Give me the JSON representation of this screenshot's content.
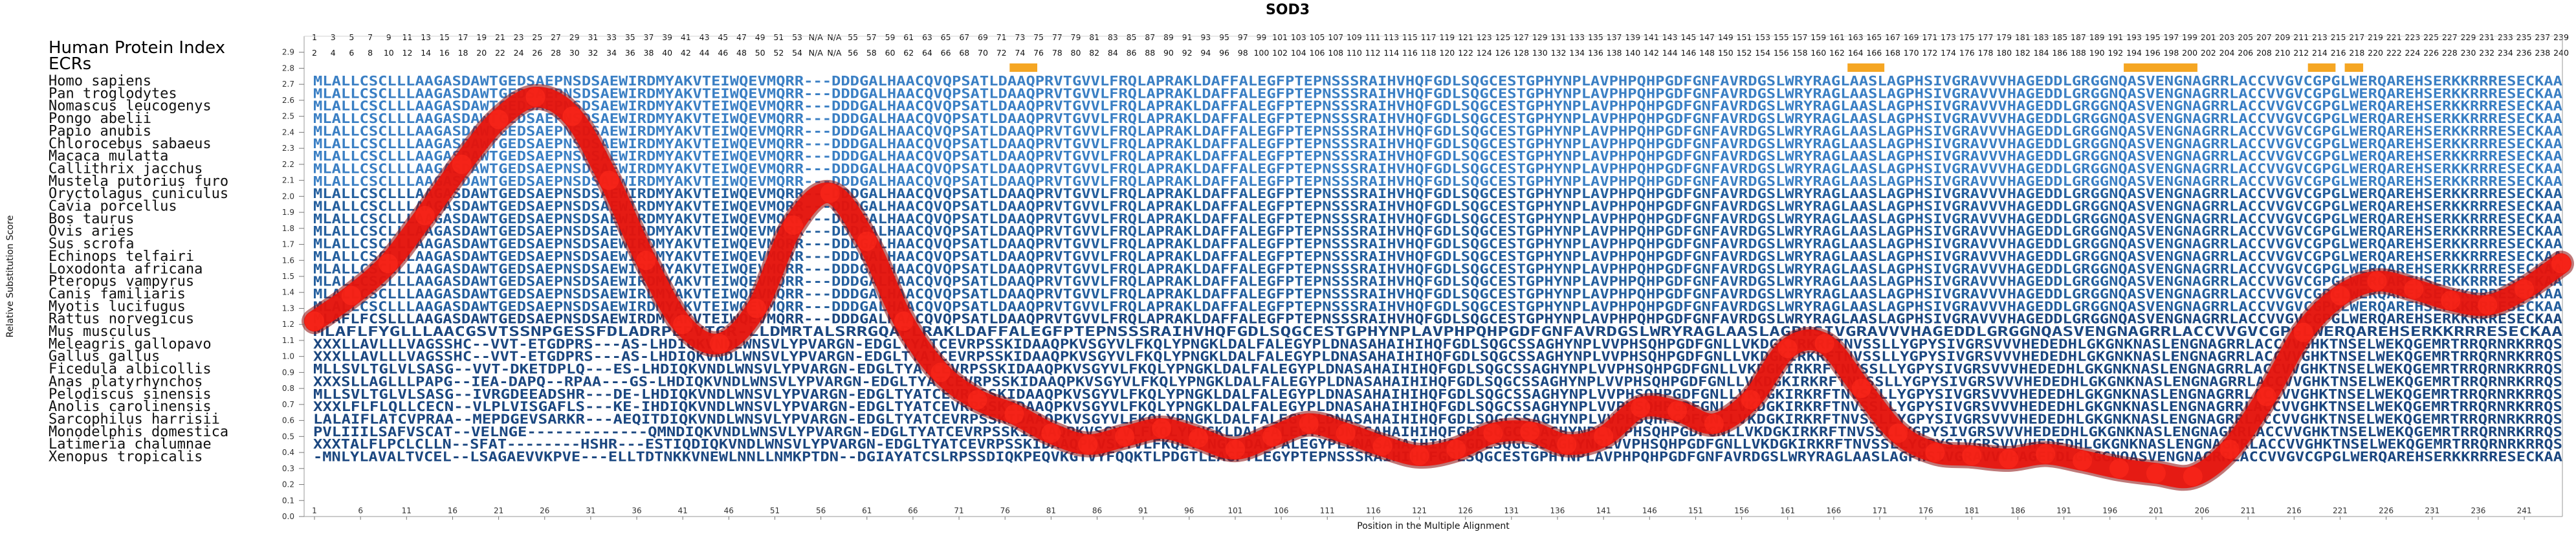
{
  "header": {
    "title": "SOD3",
    "index_label": "Human Protein Index",
    "ecr_label": "ECRs"
  },
  "chart_data": {
    "type": "line",
    "title": "SOD3",
    "xlabel": "Position in the Multiple Alignment",
    "ylabel": "Relative Substitution Score",
    "xlim": [
      1,
      245
    ],
    "ylim": [
      0,
      3.0
    ],
    "y_ticks": [
      0,
      0.1,
      0.2,
      0.3,
      0.4,
      0.5,
      0.6,
      0.7,
      0.8,
      0.9,
      1.0,
      1.1,
      1.2,
      1.3,
      1.4,
      1.5,
      1.6,
      1.7,
      1.8,
      1.9,
      2.0,
      2.1,
      2.2,
      2.3,
      2.4,
      2.5,
      2.6,
      2.7,
      2.8,
      2.9
    ],
    "x_ticks": [
      1,
      6,
      11,
      16,
      21,
      26,
      31,
      36,
      41,
      46,
      51,
      56,
      61,
      66,
      71,
      76,
      81,
      86,
      91,
      96,
      101,
      106,
      111,
      116,
      121,
      126,
      131,
      136,
      141,
      146,
      151,
      156,
      161,
      166,
      171,
      176,
      181,
      186,
      191,
      196,
      201,
      206,
      211,
      216,
      221,
      226,
      231,
      236,
      241
    ],
    "grid": false,
    "legend": "none",
    "series": [
      {
        "color": "#e8140c",
        "x": [
          1,
          5,
          9,
          13,
          17,
          21,
          25,
          29,
          33,
          37,
          41,
          45,
          49,
          53,
          57,
          61,
          65,
          69,
          73,
          77,
          81,
          85,
          89,
          93,
          97,
          101,
          105,
          109,
          113,
          117,
          121,
          125,
          129,
          133,
          137,
          141,
          145,
          149,
          153,
          157,
          161,
          165,
          169,
          173,
          177,
          181,
          185,
          189,
          193,
          197,
          201,
          205,
          209,
          213,
          217,
          221,
          225,
          229,
          233,
          237,
          241,
          245
        ],
        "y": [
          1.22,
          1.38,
          1.58,
          1.88,
          2.2,
          2.48,
          2.62,
          2.5,
          2.1,
          1.6,
          1.2,
          1.08,
          1.3,
          1.82,
          2.02,
          1.72,
          1.22,
          0.9,
          0.73,
          0.64,
          0.52,
          0.45,
          0.5,
          0.55,
          0.49,
          0.42,
          0.5,
          0.58,
          0.52,
          0.44,
          0.38,
          0.42,
          0.52,
          0.53,
          0.45,
          0.5,
          0.68,
          0.66,
          0.58,
          0.73,
          1.05,
          1.08,
          0.8,
          0.52,
          0.4,
          0.38,
          0.36,
          0.39,
          0.35,
          0.3,
          0.27,
          0.25,
          0.42,
          0.75,
          1.15,
          1.38,
          1.47,
          1.42,
          1.35,
          1.32,
          1.42,
          1.58
        ]
      }
    ]
  },
  "ecr_segments": [
    {
      "from": 77,
      "to": 79
    },
    {
      "from": 168,
      "to": 171
    },
    {
      "from": 198,
      "to": 205
    },
    {
      "from": 218,
      "to": 220
    },
    {
      "from": 222,
      "to": 223
    }
  ],
  "human_index_row1": [
    "1",
    "3",
    "5",
    "7",
    "9",
    "11",
    "13",
    "15",
    "17",
    "19",
    "21",
    "23",
    "25",
    "27",
    "29",
    "31",
    "33",
    "35",
    "37",
    "39",
    "41",
    "43",
    "45",
    "47",
    "49",
    "51",
    "53",
    "N/A",
    "N/A",
    "55",
    "57",
    "59",
    "61",
    "63",
    "65",
    "67",
    "69",
    "71",
    "73",
    "75",
    "77",
    "79",
    "81",
    "83",
    "85",
    "87",
    "89",
    "91",
    "93",
    "95",
    "97",
    "99",
    "101",
    "103",
    "105",
    "107",
    "109",
    "111",
    "113",
    "115",
    "117",
    "119",
    "121",
    "123",
    "125",
    "127",
    "129",
    "131",
    "133",
    "135",
    "137",
    "139",
    "141",
    "143",
    "145",
    "147",
    "149",
    "151",
    "153",
    "155",
    "157",
    "159",
    "161",
    "163",
    "165",
    "167",
    "169",
    "171",
    "173",
    "175",
    "177",
    "179",
    "181",
    "183",
    "185",
    "187",
    "189",
    "191",
    "193",
    "195",
    "197",
    "199",
    "201",
    "203",
    "205",
    "207",
    "209",
    "211",
    "213",
    "215",
    "217",
    "219",
    "221",
    "223",
    "225",
    "227",
    "229",
    "231",
    "233",
    "235",
    "237",
    "239"
  ],
  "human_index_row2": [
    "2",
    "4",
    "6",
    "8",
    "10",
    "12",
    "14",
    "16",
    "18",
    "20",
    "22",
    "24",
    "26",
    "28",
    "30",
    "32",
    "34",
    "36",
    "38",
    "40",
    "42",
    "44",
    "46",
    "48",
    "50",
    "52",
    "54",
    "N/A",
    "N/A",
    "56",
    "58",
    "60",
    "62",
    "64",
    "66",
    "68",
    "70",
    "72",
    "74",
    "76",
    "78",
    "80",
    "82",
    "84",
    "86",
    "88",
    "90",
    "92",
    "94",
    "96",
    "98",
    "100",
    "102",
    "104",
    "106",
    "108",
    "110",
    "112",
    "114",
    "116",
    "118",
    "120",
    "122",
    "124",
    "126",
    "128",
    "130",
    "132",
    "134",
    "136",
    "138",
    "140",
    "142",
    "144",
    "146",
    "148",
    "150",
    "152",
    "154",
    "156",
    "158",
    "160",
    "162",
    "164",
    "166",
    "168",
    "170",
    "172",
    "174",
    "176",
    "178",
    "180",
    "182",
    "184",
    "186",
    "188",
    "190",
    "192",
    "194",
    "196",
    "198",
    "200",
    "202",
    "204",
    "206",
    "208",
    "210",
    "212",
    "214",
    "216",
    "218",
    "220",
    "222",
    "224",
    "226",
    "228",
    "230",
    "232",
    "234",
    "236",
    "238",
    "240"
  ],
  "alignment": [
    {
      "species": "Homo sapiens",
      "seq": "MLALLCSCLLLAAGASDAWTGEDSAEPNSDSAEWIRDMYAKVTEIWQEVMQRR---DDDGALHAACQVQPSATLDAAQPRVTGVVLFRQLAPRAKLDAFFALEGFPTEPNSSSRAIHVHQFGDLSQGCESTGPHYNPLAVPHPQHPGDFGNFAVRDGSLWRYRAGLAASLAGPHSIVGRAVVVHAGEDDLGRGGNQASVENGNAGRRLACCVVGVCGPGLWERQAREHSERKKRRRESECKAA"
    },
    {
      "species": "Pan troglodytes",
      "seq": "MLALLCSCLLLAAGASDAWTGEDSAEPNSDSAEWIRDMYAKVTEIWQEVMQRR---DDDGALHAACQVQPSATLDAAQPRVTGVVLFRQLAPRAKLDAFFALEGFPTEPNSSSRAIHVHQFGDLSQGCESTGPHYNPLAVPHPQHPGDFGNFAVRDGSLWRYRAGLAASLAGPHSIVGRAVVVHAGEDDLGRGGNQASVENGNAGRRLACCVVGVCGPGLWERQAREHSERKKRRRESECKAA"
    },
    {
      "species": "Nomascus leucogenys",
      "seq": "MLALLCSCLLLAAGASDAWTGEDSAEPNSDSAEWIRDMYAKVTEIWQEVMQRR---DDDGALHAACQVQPSATLDAAQPRVTGVVLFRQLAPRAKLDAFFALEGFPTEPNSSSRAIHVHQFGDLSQGCESTGPHYNPLAVPHPQHPGDFGNFAVRDGSLWRYRAGLAASLAGPHSIVGRAVVVHAGEDDLGRGGNQASVENGNAGRRLACCVVGVCGPGLWERQAREHSERKKRRRESECKAA"
    },
    {
      "species": "Pongo abelii",
      "seq": "MLALLCSCLLLAAGASDAWTGEDSAEPNSDSAEWIRDMYAKVTEIWQEVMQRR---DDDGALHAACQVQPSATLDAAQPRVTGVVLFRQLAPRAKLDAFFALEGFPTEPNSSSRAIHVHQFGDLSQGCESTGPHYNPLAVPHPQHPGDFGNFAVRDGSLWRYRAGLAASLAGPHSIVGRAVVVHAGEDDLGRGGNQASVENGNAGRRLACCVVGVCGPGLWERQAREHSERKKRRRESECKAA"
    },
    {
      "species": "Papio anubis",
      "seq": "MLALLCSCLLLAAGASDAWTGEDSAEPNSDSAEWIRDMYAKVTEIWQEVMQRR---DDDGALHAACQVQPSATLDAAQPRVTGVVLFRQLAPRAKLDAFFALEGFPTEPNSSSRAIHVHQFGDLSQGCESTGPHYNPLAVPHPQHPGDFGNFAVRDGSLWRYRAGLAASLAGPHSIVGRAVVVHAGEDDLGRGGNQASVENGNAGRRLACCVVGVCGPGLWERQAREHSERKKRRRESECKAA"
    },
    {
      "species": "Chlorocebus sabaeus",
      "seq": "MLALLCSCLLLAAGASDAWTGEDSAEPNSDSAEWIRDMYAKVTEIWQEVMQRR---DDDGALHAACQVQPSATLDAAQPRVTGVVLFRQLAPRAKLDAFFALEGFPTEPNSSSRAIHVHQFGDLSQGCESTGPHYNPLAVPHPQHPGDFGNFAVRDGSLWRYRAGLAASLAGPHSIVGRAVVVHAGEDDLGRGGNQASVENGNAGRRLACCVVGVCGPGLWERQAREHSERKKRRRESECKAA"
    },
    {
      "species": "Macaca mulatta",
      "seq": "MLALLCSCLLLAAGASDAWTGEDSAEPNSDSAEWIRDMYAKVTEIWQEVMQRR---DDDGALHAACQVQPSATLDAAQPRVTGVVLFRQLAPRAKLDAFFALEGFPTEPNSSSRAIHVHQFGDLSQGCESTGPHYNPLAVPHPQHPGDFGNFAVRDGSLWRYRAGLAASLAGPHSIVGRAVVVHAGEDDLGRGGNQASVENGNAGRRLACCVVGVCGPGLWERQAREHSERKKRRRESECKAA"
    },
    {
      "species": "Callithrix jacchus",
      "seq": "MLALLCSCLLLAAGASDAWTGEDSAEPNSDSAEWIRDMYAKVTEIWQEVMQRR---DDDGALHAACQVQPSATLDAAQPRVTGVVLFRQLAPRAKLDAFFALEGFPTEPNSSSRAIHVHQFGDLSQGCESTGPHYNPLAVPHPQHPGDFGNFAVRDGSLWRYRAGLAASLAGPHSIVGRAVVVHAGEDDLGRGGNQASVENGNAGRRLACCVVGVCGPGLWERQAREHSERKKRRRESECKAA"
    },
    {
      "species": "Mustela putorius furo",
      "seq": "MLALLCSCLLLAAGASDAWTGEDSAEPNSDSAEWIRDMYAKVTEIWQEVMQRR---DDDGALHAACQVQPSATLDAAQPRVTGVVLFRQLAPRAKLDAFFALEGFPTEPNSSSRAIHVHQFGDLSQGCESTGPHYNPLAVPHPQHPGDFGNFAVRDGSLWRYRAGLAASLAGPHSIVGRAVVVHAGEDDLGRGGNQASVENGNAGRRLACCVVGVCGPGLWERQAREHSERKKRRRESECKAA"
    },
    {
      "species": "Oryctolagus cuniculus",
      "seq": "MLALLCSCLLLAAGASDAWTGEDSAEPNSDSAEWIRDMYAKVTEIWQEVMQRR---DDDGALHAACQVQPSATLDAAQPRVTGVVLFRQLAPRAKLDAFFALEGFPTEPNSSSRAIHVHQFGDLSQGCESTGPHYNPLAVPHPQHPGDFGNFAVRDGSLWRYRAGLAASLAGPHSIVGRAVVVHAGEDDLGRGGNQASVENGNAGRRLACCVVGVCGPGLWERQAREHSERKKRRRESECKAA"
    },
    {
      "species": "Cavia porcellus",
      "seq": "MLALLCSCLLLAAGASDAWTGEDSAEPNSDSAEWIRDMYAKVTEIWQEVMQRR---DDDGALHAACQVQPSATLDAAQPRVTGVVLFRQLAPRAKLDAFFALEGFPTEPNSSSRAIHVHQFGDLSQGCESTGPHYNPLAVPHPQHPGDFGNFAVRDGSLWRYRAGLAASLAGPHSIVGRAVVVHAGEDDLGRGGNQASVENGNAGRRLACCVVGVCGPGLWERQAREHSERKKRRRESECKAA"
    },
    {
      "species": "Bos taurus",
      "seq": "MLALLCSCLLLAAGASDAWTGEDSAEPNSDSAEWIRDMYAKVTEIWQEVMQRR---DDDGALHAACQVQPSATLDAAQPRVTGVVLFRQLAPRAKLDAFFALEGFPTEPNSSSRAIHVHQFGDLSQGCESTGPHYNPLAVPHPQHPGDFGNFAVRDGSLWRYRAGLAASLAGPHSIVGRAVVVHAGEDDLGRGGNQASVENGNAGRRLACCVVGVCGPGLWERQAREHSERKKRRRESECKAA"
    },
    {
      "species": "Ovis aries",
      "seq": "MLALLCSCLLLAAGASDAWTGEDSAEPNSDSAEWIRDMYAKVTEIWQEVMQRR---DDDGALHAACQVQPSATLDAAQPRVTGVVLFRQLAPRAKLDAFFALEGFPTEPNSSSRAIHVHQFGDLSQGCESTGPHYNPLAVPHPQHPGDFGNFAVRDGSLWRYRAGLAASLAGPHSIVGRAVVVHAGEDDLGRGGNQASVENGNAGRRLACCVVGVCGPGLWERQAREHSERKKRRRESECKAA"
    },
    {
      "species": "Sus scrofa",
      "seq": "MLALLCSCLLLAAGASDAWTGEDSAEPNSDSAEWIRDMYAKVTEIWQEVMQRR---DDDGALHAACQVQPSATLDAAQPRVTGVVLFRQLAPRAKLDAFFALEGFPTEPNSSSRAIHVHQFGDLSQGCESTGPHYNPLAVPHPQHPGDFGNFAVRDGSLWRYRAGLAASLAGPHSIVGRAVVVHAGEDDLGRGGNQASVENGNAGRRLACCVVGVCGPGLWERQAREHSERKKRRRESECKAA"
    },
    {
      "species": "Echinops telfairi",
      "seq": "MLALLCSCLLLAAGASDAWTGEDSAEPNSDSAEWIRDMYAKVTEIWQEVMQRR---DDDGALHAACQVQPSATLDAAQPRVTGVVLFRQLAPRAKLDAFFALEGFPTEPNSSSRAIHVHQFGDLSQGCESTGPHYNPLAVPHPQHPGDFGNFAVRDGSLWRYRAGLAASLAGPHSIVGRAVVVHAGEDDLGRGGNQASVENGNAGRRLACCVVGVCGPGLWERQAREHSERKKRRRESECKAA"
    },
    {
      "species": "Loxodonta africana",
      "seq": "MLALLCSCLLLAAGASDAWTGEDSAEPNSDSAEWIRDMYAKVTEIWQEVMQRR---DDDGALHAACQVQPSATLDAAQPRVTGVVLFRQLAPRAKLDAFFALEGFPTEPNSSSRAIHVHQFGDLSQGCESTGPHYNPLAVPHPQHPGDFGNFAVRDGSLWRYRAGLAASLAGPHSIVGRAVVVHAGEDDLGRGGNQASVENGNAGRRLACCVVGVCGPGLWERQAREHSERKKRRRESECKAA"
    },
    {
      "species": "Pteropus vampyrus",
      "seq": "MLALLCSCLLLAAGASDAWTGEDSAEPNSDSAEWIRDMYAKVTEIWQEVMQRR---DDDGALHAACQVQPSATLDAAQPRVTGVVLFRQLAPRAKLDAFFALEGFPTEPNSSSRAIHVHQFGDLSQGCESTGPHYNPLAVPHPQHPGDFGNFAVRDGSLWRYRAGLAASLAGPHSIVGRAVVVHAGEDDLGRGGNQASVENGNAGRRLACCVVGVCGPGLWERQAREHSERKKRRRESECKAA"
    },
    {
      "species": "Canis familiaris",
      "seq": "MLALLCSCLLLAAGASDAWTGEDSAEPNSDSAEWIRDMYAKVTEIWQEVMQRR---DDDGALHAACQVQPSATLDAAQPRVTGVVLFRQLAPRAKLDAFFALEGFPTEPNSSSRAIHVHQFGDLSQGCESTGPHYNPLAVPHPQHPGDFGNFAVRDGSLWRYRAGLAASLAGPHSIVGRAVVVHAGEDDLGRGGNQASVENGNAGRRLACCVVGVCGPGLWERQAREHSERKKRRRESECKAA"
    },
    {
      "species": "Myotis lucifugus",
      "seq": "MLALLCSCLLLAAGASDAWTGEDSAEPNSDSAEWIRDMYAKVTEIWQEVMQRR---DDDGALHAACQVQPSATLDAAQPRVTGVVLFRQLAPRAKLDAFFALEGFPTEPNSSSRAIHVHQFGDLSQGCESTGPHYNPLAVPHPQHPGDFGNFAVRDGSLWRYRAGLAASLAGPHSIVGRAVVVHAGEDDLGRGGNQASVENGNAGRRLACCVVGVCGPGLWERQAREHSERKKRRRESECKAA"
    },
    {
      "species": "Rattus norvegicus",
      "seq": "MLAFLFCSLLLAAGASDAWTGEDSAEPNSDSAEWIRDMYAKVTEIWQEVMQRR---DDDGALHAACQVQPSATLDAAQPRVTGVVLFRQLAPRAKLDAFFALEGFPTEPNSSSRAIHVHQFGDLSQGCESTGPHYNPLAVPHPQHPGDFGNFAVRDGSLWRYRAGLAASLAGPHSIVGRAVVVHAGEDDLGRGGNQASVENGNAGRRLACCVVGVCGPGLWERQAREHSERKKRRRESECKAA"
    },
    {
      "species": "Mus musculus",
      "seq": "MLAFLFYGLLLAACGSVTSSNPGESSFDLADRPEPVTGR-LLDMRTALSRRGQAPLRAKLDAFFALEGFPTEPNSSSRAIHVHQFGDLSQGCESTGPHYNPLAVPHPQHPGDFGNFAVRDGSLWRYRAGLAASLAGPHSIVGRAVVVHAGEDDLGRGGNQASVENGNAGRRLACCVVGVCGPGLWERQAREHSERKKRRRESECKAA"
    },
    {
      "species": "Meleagris gallopavo",
      "seq": "XXXLLAVLLLVAGSSHC--VVT-ETGDPRS---AS-LHDIQKVNDLWNSVLYPVARGN-EDGLTYATCEVRPSSKIDAAQPKVSGYVLFKQLYPNGKLDALFALEGYPLDNASAHAIHIHQFGDLSQGCSSAGHYNPLVVPHSQHPGDFGNLLVKDGKIRKRFTNVSSLLYGPYSIVGRSVVVHEDEDHLGKGNKNASLENGNAGRRLACCVVGHKTNSELWEKQGEMRTRRQRNRKRRQS"
    },
    {
      "species": "Gallus gallus",
      "seq": "XXXLLAVLLLVAGSSHC--VVT-ETGDPRS---AS-LHDIQKVNDLWNSVLYPVARGN-EDGLTYATCEVRPSSKIDAAQPKVSGYVLFKQLYPNGKLDALFALEGYPLDNASAHAIHIHQFGDLSQGCSSAGHYNPLVVPHSQHPGDFGNLLVKDGKIRKRFTNVSSLLYGPYSIVGRSVVVHEDEDHLGKGNKNASLENGNAGRRLACCVVGHKTNSELWEKQGEMRTRRQRNRKRRQS"
    },
    {
      "species": "Ficedula albicollis",
      "seq": "MLLSVLTGLVLSASG--VVT-DKETDPLQ---ES-LHDIQKVNDLWNSVLYPVARGN-EDGLTYATCEVRPSSKIDAAQPKVSGYVLFKQLYPNGKLDALFALEGYPLDNASAHAIHIHQFGDLSQGCSSAGHYNPLVVPHSQHPGDFGNLLVKDGKIRKRFTNVSSLLYGPYSIVGRSVVVHEDEDHLGKGNKNASLENGNAGRRLACCVVGHKTNSELWEKQGEMRTRRQRNRKRRQS"
    },
    {
      "species": "Anas platyrhynchos",
      "seq": "XXXSLLAGLLLPAPG--IEA-DAPQ--RPAA---GS-LHDIQKVNDLWNSVLYPVARGN-EDGLTYATCEVRPSSKIDAAQPKVSGYVLFKQLYPNGKLDALFALEGYPLDNASAHAIHIHQFGDLSQGCSSAGHYNPLVVPHSQHPGDFGNLLVKDGKIRKRFTNVSSLLYGPYSIVGRSVVVHEDEDHLGKGNKNASLENGNAGRRLACCVVGHKTNSELWEKQGEMRTRRQRNRKRRQS"
    },
    {
      "species": "Pelodiscus sinensis",
      "seq": "MLLSVLTGLVLSASG--IVRGDEEADSHR---DE-LHDIQKVNDLWNSVLYPVARGN-EDGLTYATCEVRPSSKIDAAQPKVSGYVLFKQLYPNGKLDALFALEGYPLDNASAHAIHIHQFGDLSQGCSSAGHYNPLVVPHSQHPGDFGNLLVKDGKIRKRFTNVSSLLYGPYSIVGRSVVVHEDEDHLGKGNKNASLENGNAGRRLACCVVGHKTNSELWEKQGEMRTRRQRNRKRRQS"
    },
    {
      "species": "Anolis carolinensis",
      "seq": "XXXLFLFLQLLCECN--VLPLVISGAFLS---KE-IHDIQKVNDLWNSVLYPVARGN-EDGLTYATCEVRPSSKIDAAQPKVSGYVLFKQLYPNGKLDALFALEGYPLDNASAHAIHIHQFGDLSQGCSSAGHYNPLVVPHSQHPGDFGNLLVKDGKIRKRFTNVSSLLYGPYSIVGRSVVVHEDEDHLGKGNKNASLENGNAGRRLACCVVGHKTNSELWEKQGEMRTRRQRNRKRRQS"
    },
    {
      "species": "Sarcophilus harrisii",
      "seq": "LALAIFLATCVPRAA--MEPDGEVSARKR---AEQITDIQKVNDLWNSVLYPVARGN-EDGLTYATCEVRPSSKIDAAQPKVSGYVLFKQLYPNGKLDALFALEGYPLDNASAHAIHIHQFGDLSQGCSSAGHYNPLVVPHSQHPGDFGNLLVKDGKIRKRFTNVSSLLYGPYSIVGRSVVVHEDEDHLGKGNKNASLENGNAGRRLACCVVGHKTNSELWEKQGEMRTRRQRNRKRRQS"
    },
    {
      "species": "Monodelphis domestica",
      "seq": "PVLIIILSAFVSCAT--VELNGE-------------QMNDIQKVNDLWNSVLYPVARGN-EDGLTYATCEVRPSSKIDAAQPKVSGYVLFKQLYPNGKLDALFALEGYPLDNASAHAIHIHQFGDLSQGCSSAGHYNPLVVPHSQHPGDFGNLLVKDGKIRKRFTNVSSLLYGPYSIVGRSVVVHEDEDHLGKGNKNASLENGNAGRRLACCVVGHKTNSELWEKQGEMRTRRQRNRKRRQS"
    },
    {
      "species": "Latimeria chalumnae",
      "seq": "XXXTALFLPCLCLLN--SFAT--------HSHR---ESTIQDIQKVNDLWNSVLYPVARGN-EDGLTYATCEVRPSSKIDAAQPKVSGYVLFKQLYPNGKLDALFALEGYPLDNASAHAIHIHQFGDLSQGCSSAGHYNPLVVPHSQHPGDFGNLLVKDGKIRKRFTNVSSLLYGPYSIVGRSVVVHEDEDHLGKGNKNASLENGNAGRRLACCVVGHKTNSELWEKQGEMRTRRQRNRKRRQS"
    },
    {
      "species": "Xenopus tropicalis",
      "seq": "-MNLYLAVALTVCEL--LSAGAEVVKPVE---ELLTDTNKKVNEWLNNLLNMKPTDN--DGIAYATCSLRPSSDIQKPEQVKGTVYFQQKTLPDGTLEAGFTLEGYPTEPNSSSRAIHIHQFGDLSQGCESTGPHYNPLAVPHPQHPGDFGNFAVRDGSLWRYRAGLAASLAGPHSIVGRAVVVHAGEDDLGRGGNQASVENGNAGRRLACCVVGVCGPGLWERQAREHSERKKRRRESECKAA"
    }
  ]
}
